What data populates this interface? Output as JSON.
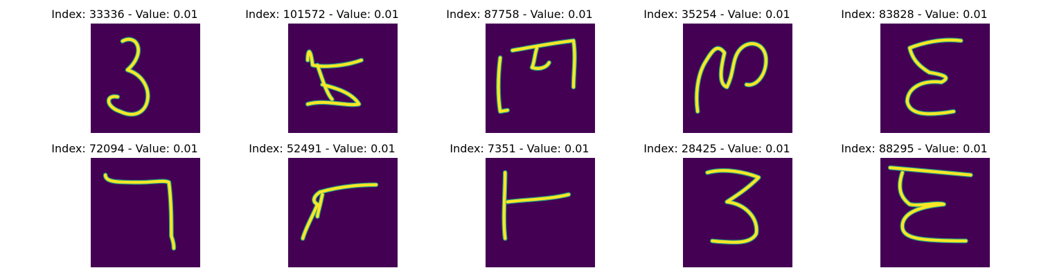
{
  "figure": {
    "colors": {
      "background": "#440154",
      "stroke": "#fde725",
      "stroke_edge": "#22a884",
      "text": "#000000"
    },
    "panels": [
      {
        "title": "Index: 33336 - Value: 0.01",
        "index": 33336,
        "value": 0.01,
        "glyph": "3"
      },
      {
        "title": "Index: 101572 - Value: 0.01",
        "index": 101572,
        "value": 0.01,
        "glyph": "H-rotated"
      },
      {
        "title": "Index: 87758 - Value: 0.01",
        "index": 87758,
        "value": 0.01,
        "glyph": "m-rotated"
      },
      {
        "title": "Index: 35254 - Value: 0.01",
        "index": 35254,
        "value": 0.01,
        "glyph": "N-like"
      },
      {
        "title": "Index: 83828 - Value: 0.01",
        "index": 83828,
        "value": 0.01,
        "glyph": "E-curly"
      },
      {
        "title": "Index: 72094 - Value: 0.01",
        "index": 72094,
        "value": 0.01,
        "glyph": "7-angle"
      },
      {
        "title": "Index: 52491 - Value: 0.01",
        "index": 52491,
        "value": 0.01,
        "glyph": "r-curve"
      },
      {
        "title": "Index: 7351 - Value: 0.01",
        "index": 7351,
        "value": 0.01,
        "glyph": "F-sideways"
      },
      {
        "title": "Index: 28425 - Value: 0.01",
        "index": 28425,
        "value": 0.01,
        "glyph": "3-angular"
      },
      {
        "title": "Index: 88295 - Value: 0.01",
        "index": 88295,
        "value": 0.01,
        "glyph": "E-script"
      }
    ]
  }
}
